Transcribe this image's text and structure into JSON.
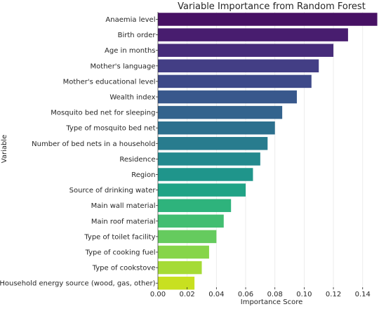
{
  "chart_data": {
    "type": "bar",
    "orientation": "horizontal",
    "title": "Variable Importance from Random Forest",
    "xlabel": "Importance Score",
    "ylabel": "Variable",
    "categories": [
      "Anaemia level",
      "Birth order",
      "Age in months",
      "Mother's language",
      "Mother's educational level",
      "Wealth index",
      "Mosquito bed net for sleeping",
      "Type of mosquito bed net",
      "Number of bed nets in a household",
      "Residence",
      "Region",
      "Source of drinking water",
      "Main wall material",
      "Main roof material",
      "Type of toilet facility",
      "Type of cooking fuel",
      "Type of cookstove",
      "Household energy source (wood, gas, other)"
    ],
    "values": [
      0.15,
      0.13,
      0.12,
      0.11,
      0.105,
      0.095,
      0.085,
      0.08,
      0.075,
      0.07,
      0.065,
      0.06,
      0.05,
      0.045,
      0.04,
      0.035,
      0.03,
      0.025
    ],
    "colors": [
      "#471164",
      "#481d6f",
      "#472c7a",
      "#433e85",
      "#3e4989",
      "#38588c",
      "#33638d",
      "#2d708e",
      "#287c8e",
      "#23898e",
      "#1f958b",
      "#20a386",
      "#2eb37c",
      "#42be71",
      "#65cb5e",
      "#86d549",
      "#a5db36",
      "#c8e020"
    ],
    "xlim": [
      0,
      0.155
    ],
    "xticks": [
      "0.00",
      "0.02",
      "0.04",
      "0.06",
      "0.08",
      "0.10",
      "0.12",
      "0.14"
    ],
    "grid": "vertical",
    "palette": "viridis"
  }
}
